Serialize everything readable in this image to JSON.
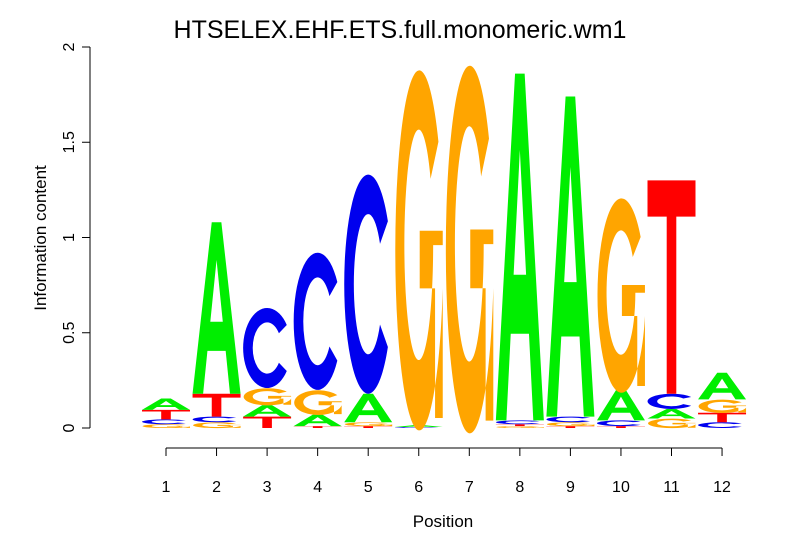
{
  "chart_data": {
    "type": "sequence-logo",
    "title": "HTSELEX.EHF.ETS.full.monomeric.wm1",
    "xlabel": "Position",
    "ylabel": "Information content",
    "ylim": [
      0,
      2
    ],
    "yticks": [
      "0",
      "0.5",
      "1",
      "1.5",
      "2"
    ],
    "ytick_values": [
      0,
      0.5,
      1,
      1.5,
      2
    ],
    "colors": {
      "A": "#00ee00",
      "C": "#0000ee",
      "G": "#ffa500",
      "T": "#ff0000"
    },
    "positions": [
      {
        "label": "1",
        "stack": [
          [
            "G",
            0.02
          ],
          [
            "C",
            0.025
          ],
          [
            "T",
            0.05
          ],
          [
            "A",
            0.06
          ]
        ]
      },
      {
        "label": "2",
        "stack": [
          [
            "G",
            0.03
          ],
          [
            "C",
            0.03
          ],
          [
            "T",
            0.12
          ],
          [
            "A",
            0.9
          ]
        ]
      },
      {
        "label": "3",
        "stack": [
          [
            "T",
            0.06
          ],
          [
            "A",
            0.06
          ],
          [
            "G",
            0.09
          ],
          [
            "C",
            0.42
          ]
        ]
      },
      {
        "label": "4",
        "stack": [
          [
            "T",
            0.01
          ],
          [
            "A",
            0.06
          ],
          [
            "G",
            0.13
          ],
          [
            "C",
            0.72
          ]
        ]
      },
      {
        "label": "5",
        "stack": [
          [
            "T",
            0.01
          ],
          [
            "G",
            0.02
          ],
          [
            "A",
            0.15
          ],
          [
            "C",
            1.15
          ]
        ]
      },
      {
        "label": "6",
        "stack": [
          [
            "C",
            0.005
          ],
          [
            "A",
            0.01
          ],
          [
            "G",
            1.89
          ]
        ]
      },
      {
        "label": "7",
        "stack": [
          [
            "G",
            1.93
          ]
        ]
      },
      {
        "label": "8",
        "stack": [
          [
            "G",
            0.01
          ],
          [
            "T",
            0.01
          ],
          [
            "C",
            0.02
          ],
          [
            "A",
            1.82
          ]
        ]
      },
      {
        "label": "9",
        "stack": [
          [
            "T",
            0.01
          ],
          [
            "G",
            0.02
          ],
          [
            "C",
            0.03
          ],
          [
            "A",
            1.68
          ]
        ]
      },
      {
        "label": "10",
        "stack": [
          [
            "T",
            0.01
          ],
          [
            "C",
            0.03
          ],
          [
            "A",
            0.16
          ],
          [
            "G",
            1.02
          ]
        ]
      },
      {
        "label": "11",
        "stack": [
          [
            "G",
            0.05
          ],
          [
            "A",
            0.05
          ],
          [
            "C",
            0.08
          ],
          [
            "T",
            1.12
          ]
        ]
      },
      {
        "label": "12",
        "stack": [
          [
            "C",
            0.03
          ],
          [
            "T",
            0.05
          ],
          [
            "G",
            0.07
          ],
          [
            "A",
            0.14
          ]
        ]
      }
    ]
  }
}
